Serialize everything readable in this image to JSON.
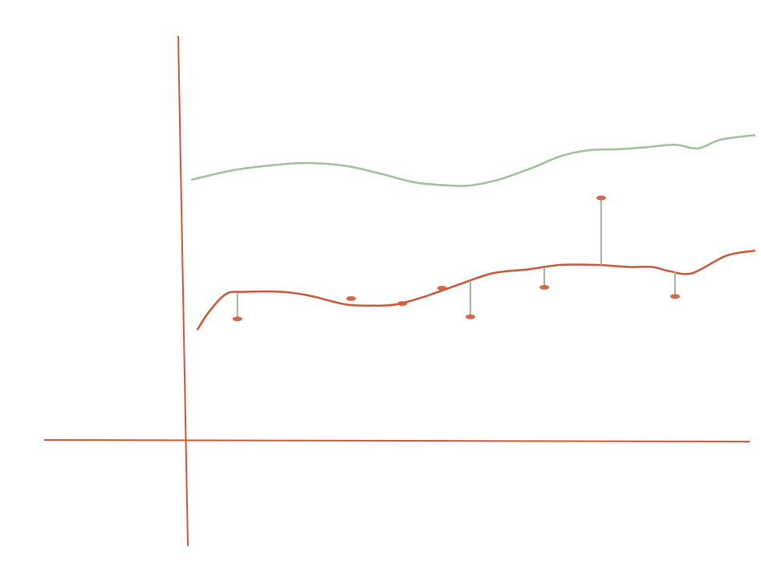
{
  "chart_data": {
    "type": "line",
    "title": "",
    "xlabel": "",
    "ylabel": "",
    "grid": false,
    "legend": "none",
    "xlim": [
      0,
      100
    ],
    "ylim": [
      0,
      100
    ],
    "colors": {
      "axis": "#c9573a",
      "upper_series": "#9fc09a",
      "lower_series": "#c9573a",
      "points": "#d2563a",
      "residuals": "#9fb49a"
    },
    "series": [
      {
        "values": [
          [
            1,
            62.6
          ],
          [
            8,
            64.8
          ],
          [
            14,
            65.9
          ],
          [
            21,
            66.6
          ],
          [
            28,
            65.9
          ],
          [
            34,
            64.1
          ],
          [
            40,
            62.0
          ],
          [
            46,
            61.2
          ],
          [
            50,
            61.2
          ],
          [
            55,
            62.6
          ],
          [
            61,
            65.5
          ],
          [
            66,
            68.3
          ],
          [
            71,
            69.7
          ],
          [
            76,
            69.9
          ],
          [
            81,
            70.4
          ],
          [
            86,
            71.0
          ],
          [
            90,
            70.1
          ],
          [
            94,
            72.2
          ],
          [
            100,
            73.3
          ]
        ]
      },
      {
        "values": [
          [
            2,
            26.6
          ],
          [
            4,
            30.8
          ],
          [
            7,
            35.1
          ],
          [
            10,
            35.6
          ],
          [
            17,
            35.6
          ],
          [
            22,
            34.6
          ],
          [
            28,
            32.6
          ],
          [
            33,
            32.3
          ],
          [
            37,
            32.6
          ],
          [
            42,
            34.5
          ],
          [
            48,
            37.4
          ],
          [
            54,
            40.1
          ],
          [
            60,
            41.0
          ],
          [
            66,
            42.1
          ],
          [
            72,
            42.1
          ],
          [
            78,
            41.6
          ],
          [
            82,
            41.6
          ],
          [
            85,
            40.6
          ],
          [
            89,
            40.1
          ],
          [
            95,
            44.3
          ],
          [
            100,
            45.5
          ]
        ]
      }
    ],
    "points": [
      {
        "x": 9,
        "y": 29.1
      },
      {
        "x": 29,
        "y": 34.0
      },
      {
        "x": 38,
        "y": 32.8
      },
      {
        "x": 45,
        "y": 36.5
      },
      {
        "x": 50,
        "y": 29.6
      },
      {
        "x": 63,
        "y": 36.7
      },
      {
        "x": 73,
        "y": 58.2
      },
      {
        "x": 86,
        "y": 34.5
      }
    ]
  }
}
